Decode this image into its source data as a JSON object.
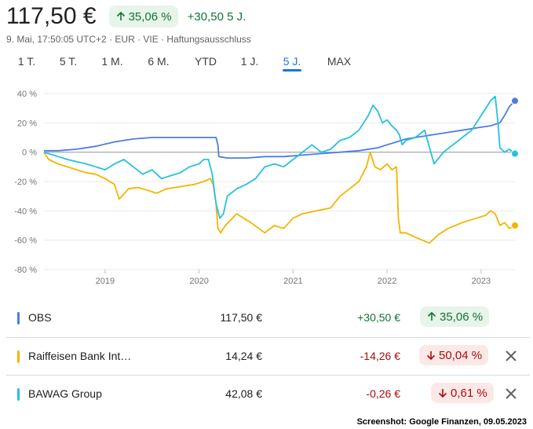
{
  "quote": {
    "price": "117,50 €",
    "pct_change": "35,06 %",
    "abs_change": "+30,50 5 J.",
    "meta": "9. Mai, 17:50:05 UTC+2 · EUR · VIE · Haftungsausschluss"
  },
  "tabs": [
    {
      "label": "1 T.",
      "active": false
    },
    {
      "label": "5 T.",
      "active": false
    },
    {
      "label": "1 M.",
      "active": false
    },
    {
      "label": "6 M.",
      "active": false
    },
    {
      "label": "YTD",
      "active": false
    },
    {
      "label": "1 J.",
      "active": false
    },
    {
      "label": "5 J.",
      "active": true
    },
    {
      "label": "MAX",
      "active": false
    }
  ],
  "chart_data": {
    "type": "line",
    "ylim": [
      -80,
      40
    ],
    "yticks": [
      40,
      20,
      0,
      -20,
      -40,
      -60,
      -80
    ],
    "ytick_labels": [
      "40 %",
      "20 %",
      "0 %",
      "-20 %",
      "-40 %",
      "-60 %",
      "-80 %"
    ],
    "xlim": [
      2018.35,
      2023.36
    ],
    "xticks": [
      2019,
      2020,
      2021,
      2022,
      2023
    ],
    "xtick_labels": [
      "2019",
      "2020",
      "2021",
      "2022",
      "2023"
    ],
    "grid": true,
    "series": [
      {
        "name": "OBS",
        "color": "#4c7de0",
        "x": [
          2018.35,
          2018.5,
          2018.7,
          2018.9,
          2019.1,
          2019.3,
          2019.5,
          2019.7,
          2019.9,
          2020.1,
          2020.18,
          2020.2,
          2020.21,
          2020.3,
          2020.5,
          2020.7,
          2020.9,
          2021.1,
          2021.3,
          2021.5,
          2021.7,
          2021.9,
          2022.0,
          2022.2,
          2022.4,
          2022.6,
          2022.8,
          2023.0,
          2023.1,
          2023.15,
          2023.2,
          2023.25,
          2023.3,
          2023.36
        ],
        "y": [
          1,
          1,
          2,
          4,
          7,
          9,
          10,
          10,
          10,
          10,
          10,
          5,
          -3,
          -4,
          -4,
          -3,
          -3,
          -2,
          -1,
          0,
          1,
          3,
          5,
          9,
          11,
          13,
          15,
          17,
          18,
          19,
          20,
          25,
          31,
          35
        ]
      },
      {
        "name": "Raiffeisen Bank Int…",
        "color": "#f4b400",
        "x": [
          2018.35,
          2018.4,
          2018.5,
          2018.6,
          2018.7,
          2018.8,
          2018.9,
          2019.0,
          2019.1,
          2019.15,
          2019.25,
          2019.35,
          2019.45,
          2019.55,
          2019.65,
          2019.75,
          2019.85,
          2019.95,
          2020.05,
          2020.12,
          2020.15,
          2020.18,
          2020.2,
          2020.23,
          2020.28,
          2020.4,
          2020.55,
          2020.7,
          2020.8,
          2020.9,
          2021.0,
          2021.1,
          2021.25,
          2021.4,
          2021.5,
          2021.6,
          2021.7,
          2021.78,
          2021.82,
          2021.87,
          2021.93,
          2022.0,
          2022.05,
          2022.1,
          2022.12,
          2022.14,
          2022.2,
          2022.3,
          2022.45,
          2022.55,
          2022.65,
          2022.8,
          2022.95,
          2023.05,
          2023.1,
          2023.15,
          2023.2,
          2023.25,
          2023.3,
          2023.36
        ],
        "y": [
          0,
          -5,
          -8,
          -10,
          -12,
          -14,
          -15,
          -18,
          -22,
          -32,
          -25,
          -24,
          -26,
          -28,
          -25,
          -24,
          -23,
          -22,
          -20,
          -18,
          -22,
          -35,
          -52,
          -55,
          -50,
          -42,
          -48,
          -55,
          -50,
          -52,
          -45,
          -42,
          -40,
          -38,
          -30,
          -25,
          -20,
          -10,
          0,
          -10,
          -12,
          -8,
          -12,
          -10,
          -45,
          -55,
          -55,
          -58,
          -62,
          -56,
          -52,
          -48,
          -45,
          -43,
          -40,
          -42,
          -50,
          -48,
          -52,
          -50
        ]
      },
      {
        "name": "BAWAG Group",
        "color": "#24c1e0",
        "x": [
          2018.35,
          2018.5,
          2018.6,
          2018.8,
          2018.9,
          2019.0,
          2019.1,
          2019.2,
          2019.3,
          2019.4,
          2019.5,
          2019.6,
          2019.7,
          2019.8,
          2019.9,
          2020.0,
          2020.05,
          2020.1,
          2020.14,
          2020.18,
          2020.22,
          2020.26,
          2020.3,
          2020.4,
          2020.5,
          2020.6,
          2020.7,
          2020.8,
          2020.9,
          2021.0,
          2021.1,
          2021.2,
          2021.3,
          2021.4,
          2021.5,
          2021.6,
          2021.7,
          2021.75,
          2021.8,
          2021.85,
          2021.9,
          2021.95,
          2022.0,
          2022.05,
          2022.1,
          2022.13,
          2022.16,
          2022.2,
          2022.3,
          2022.4,
          2022.5,
          2022.6,
          2022.7,
          2022.8,
          2022.9,
          2023.0,
          2023.05,
          2023.1,
          2023.15,
          2023.18,
          2023.2,
          2023.25,
          2023.3,
          2023.36
        ],
        "y": [
          0,
          -3,
          -5,
          -8,
          -10,
          -12,
          -8,
          -5,
          -10,
          -15,
          -12,
          -18,
          -16,
          -14,
          -10,
          -8,
          -5,
          -5,
          -15,
          -35,
          -45,
          -42,
          -30,
          -25,
          -22,
          -18,
          -10,
          -8,
          -10,
          -5,
          0,
          5,
          0,
          2,
          8,
          10,
          15,
          20,
          25,
          32,
          28,
          20,
          22,
          18,
          15,
          12,
          5,
          8,
          10,
          15,
          -8,
          0,
          5,
          10,
          15,
          25,
          30,
          35,
          38,
          20,
          3,
          0,
          2,
          -1
        ]
      }
    ]
  },
  "legend": [
    {
      "name": "OBS",
      "color": "#4c7de0",
      "price": "117,50 €",
      "change": "+30,50 €",
      "pct": "35,06 %",
      "direction": "up",
      "removable": false
    },
    {
      "name": "Raiffeisen Bank Int…",
      "color": "#f4b400",
      "price": "14,24 €",
      "change": "-14,26 €",
      "pct": "50,04 %",
      "direction": "down",
      "removable": true
    },
    {
      "name": "BAWAG Group",
      "color": "#24c1e0",
      "price": "42,08 €",
      "change": "-0,26 €",
      "pct": "0,61 %",
      "direction": "down",
      "removable": true
    }
  ],
  "credit": "Screenshot: Google Finanzen, 09.05.2023"
}
